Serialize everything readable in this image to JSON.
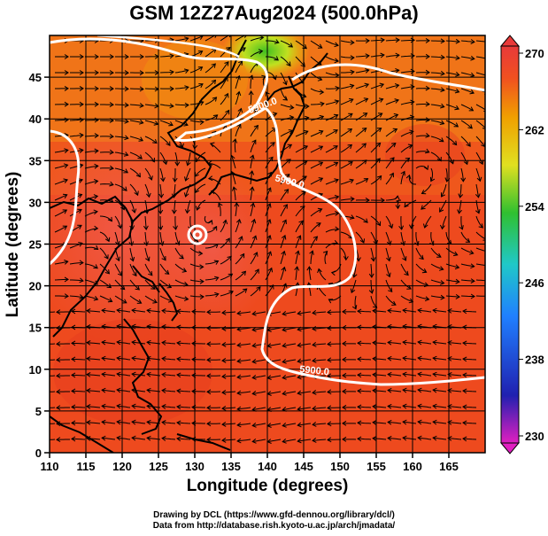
{
  "title": "GSM 12Z27Aug2024 (500.0hPa)",
  "x_axis": {
    "label": "Longitude (degrees)",
    "ticks": [
      "110",
      "115",
      "120",
      "125",
      "130",
      "135",
      "140",
      "145",
      "150",
      "155",
      "160",
      "165"
    ]
  },
  "y_axis": {
    "label": "Latitude (degrees)",
    "ticks": [
      "0",
      "5",
      "10",
      "15",
      "20",
      "25",
      "30",
      "35",
      "40",
      "45"
    ]
  },
  "colorbar": {
    "ticks": [
      "230",
      "238",
      "246",
      "254",
      "262",
      "270"
    ],
    "min": 230,
    "max": 270,
    "colors": [
      "#e020c0",
      "#2020b0",
      "#2070ff",
      "#20c0d0",
      "#30c040",
      "#d0e020",
      "#f0a000",
      "#f05020",
      "#e83a3a"
    ]
  },
  "contour_labels": [
    "5900.0",
    "5900.0",
    "5900.0"
  ],
  "credits": {
    "line1": "Drawing by DCL (https://www.gfd-dennou.org/library/dcl/)",
    "line2": "Data from http://database.rish.kyoto-u.ac.jp/arch/jmadata/"
  }
}
